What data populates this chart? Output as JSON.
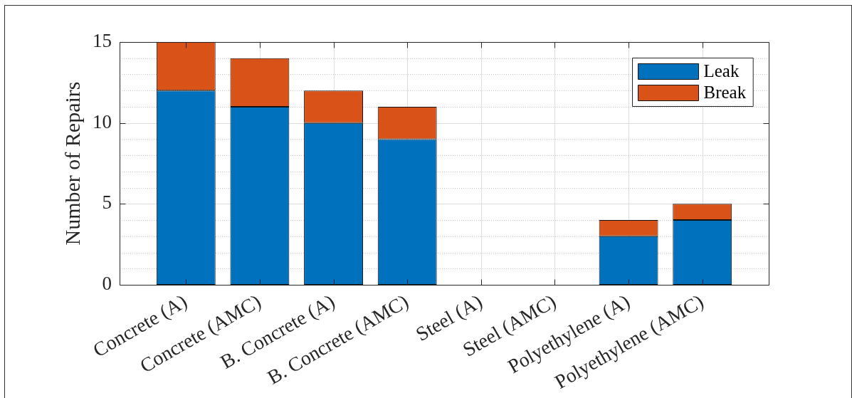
{
  "chart_data": {
    "type": "bar",
    "stacked": true,
    "categories": [
      "Concrete (A)",
      "Concrete (AMC)",
      "B. Concrete (A)",
      "B. Concrete (AMC)",
      "Steel (A)",
      "Steel (AMC)",
      "Polyethylene (A)",
      "Polyethylene (AMC)"
    ],
    "series": [
      {
        "name": "Leak",
        "color": "#0072bd",
        "values": [
          12,
          11,
          10,
          9,
          0,
          0,
          3,
          4
        ]
      },
      {
        "name": "Break",
        "color": "#d95319",
        "values": [
          3,
          3,
          2,
          2,
          0,
          0,
          1,
          1
        ]
      }
    ],
    "ylabel": "Number of Repairs",
    "ylim": [
      0,
      15
    ],
    "yticks": [
      0,
      {
        "value": 1,
        "label": null
      },
      {
        "value": 2,
        "label": null
      },
      {
        "value": 3,
        "label": null
      },
      {
        "value": 4,
        "label": null
      },
      5,
      {
        "value": 6,
        "label": null
      },
      {
        "value": 7,
        "label": null
      },
      {
        "value": 8,
        "label": null
      },
      {
        "value": 9,
        "label": null
      },
      10,
      {
        "value": 11,
        "label": null
      },
      {
        "value": 12,
        "label": null
      },
      {
        "value": 13,
        "label": null
      },
      {
        "value": 14,
        "label": null
      },
      15
    ],
    "grid": true,
    "legend": "top right"
  }
}
